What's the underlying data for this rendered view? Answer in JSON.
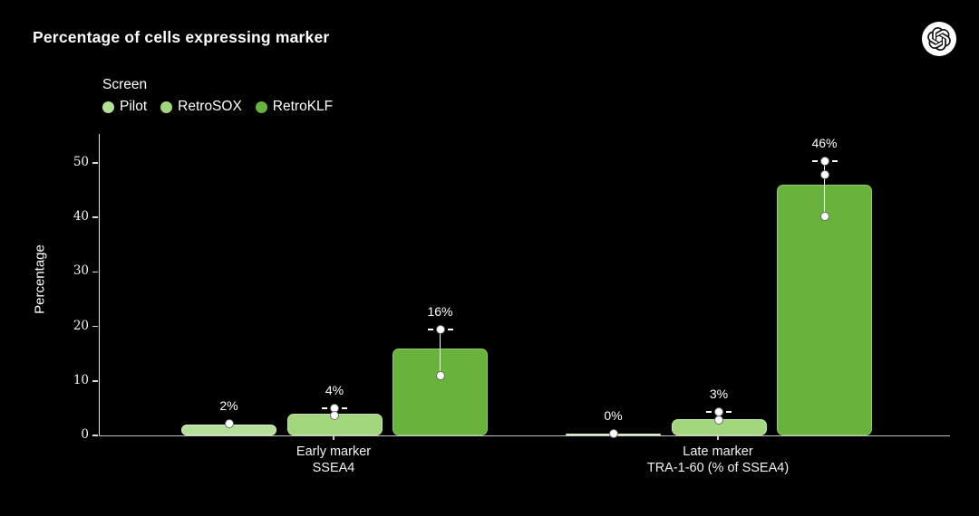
{
  "page": {
    "background": "#000000",
    "accent_green": "#68b33b"
  },
  "header": {
    "title": "Percentage of cells expressing marker",
    "logo": "openai-logo"
  },
  "chart_data": {
    "type": "bar",
    "title": "Percentage of cells expressing marker",
    "xlabel": "",
    "ylabel": "Percentage",
    "ylim": [
      0,
      55.3
    ],
    "yticks": [
      0,
      10,
      20,
      30,
      40,
      50
    ],
    "grid": false,
    "legend": {
      "title": "Screen",
      "position": "top-left"
    },
    "categories": [
      {
        "line1": "Early marker",
        "line2": "SSEA4"
      },
      {
        "line1": "Late marker",
        "line2": "TRA-1-60 (% of SSEA4)"
      }
    ],
    "series": [
      {
        "name": "Pilot",
        "color": "#b5e09a",
        "edge_color": "#d8edc6",
        "values": [
          2,
          0
        ],
        "value_labels": [
          "2%",
          "0%"
        ],
        "data_points": [
          [
            2.2
          ],
          [
            0.3
          ]
        ]
      },
      {
        "name": "RetroSOX",
        "color": "#a3d77d",
        "edge_color": "#c4e3a7",
        "values": [
          4,
          3
        ],
        "value_labels": [
          "4%",
          "3%"
        ],
        "data_points": [
          [
            5.0,
            3.7
          ],
          [
            4.3,
            2.9
          ]
        ]
      },
      {
        "name": "RetroKLF",
        "color": "#68b33b",
        "edge_color": "#93cb6c",
        "values": [
          16,
          46
        ],
        "value_labels": [
          "16%",
          "46%"
        ],
        "data_points": [
          [
            19.5,
            11.0
          ],
          [
            50.3,
            47.8,
            40.2
          ]
        ]
      }
    ]
  }
}
